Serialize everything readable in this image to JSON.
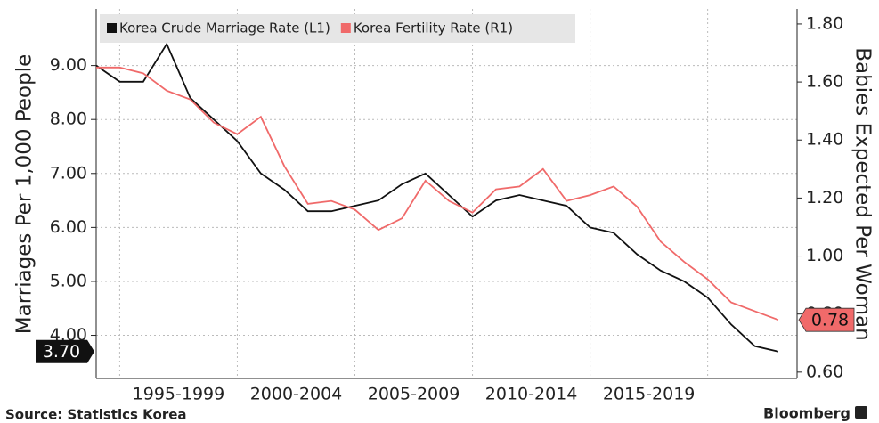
{
  "chart_data": {
    "type": "line",
    "x": [
      1993,
      1994,
      1995,
      1996,
      1997,
      1998,
      1999,
      2000,
      2001,
      2002,
      2003,
      2004,
      2005,
      2006,
      2007,
      2008,
      2009,
      2010,
      2011,
      2012,
      2013,
      2014,
      2015,
      2016,
      2017,
      2018,
      2019,
      2020,
      2021,
      2022
    ],
    "series": [
      {
        "name": "Korea Crude Marriage Rate (L1)",
        "color": "#111111",
        "axis": "y",
        "values": [
          9.0,
          8.7,
          8.7,
          9.4,
          8.4,
          8.0,
          7.6,
          7.0,
          6.7,
          6.3,
          6.3,
          6.4,
          6.5,
          6.8,
          7.0,
          6.6,
          6.2,
          6.5,
          6.6,
          6.5,
          6.4,
          6.0,
          5.9,
          5.5,
          5.2,
          5.0,
          4.7,
          4.2,
          3.8,
          3.7
        ],
        "last_label": "3.70"
      },
      {
        "name": "Korea Fertility Rate (R1)",
        "color": "#f06a6a",
        "axis": "y2",
        "values": [
          1.65,
          1.65,
          1.63,
          1.57,
          1.54,
          1.46,
          1.42,
          1.48,
          1.31,
          1.18,
          1.19,
          1.16,
          1.09,
          1.13,
          1.26,
          1.19,
          1.15,
          1.23,
          1.24,
          1.3,
          1.19,
          1.21,
          1.24,
          1.17,
          1.05,
          0.98,
          0.92,
          0.84,
          0.81,
          0.78
        ],
        "last_label": "0.78"
      }
    ],
    "xlim": [
      1993,
      2022.8
    ],
    "xticks": [
      {
        "value": 1996.5,
        "label": "1995-1999"
      },
      {
        "value": 2001.5,
        "label": "2000-2004"
      },
      {
        "value": 2006.5,
        "label": "2005-2009"
      },
      {
        "value": 2011.5,
        "label": "2010-2014"
      },
      {
        "value": 2016.5,
        "label": "2015-2019"
      }
    ],
    "xgrid": [
      1994,
      1999,
      2004,
      2009,
      2014,
      2019
    ],
    "ylim": [
      3.2,
      10.05
    ],
    "yticks": [
      {
        "value": 4,
        "label": "4.00"
      },
      {
        "value": 5,
        "label": "5.00"
      },
      {
        "value": 6,
        "label": "6.00"
      },
      {
        "value": 7,
        "label": "7.00"
      },
      {
        "value": 8,
        "label": "8.00"
      },
      {
        "value": 9,
        "label": "9.00"
      }
    ],
    "y2lim": [
      0.578,
      1.852
    ],
    "y2ticks": [
      {
        "value": 0.6,
        "label": "0.60"
      },
      {
        "value": 0.8,
        "label": "0.80"
      },
      {
        "value": 1.0,
        "label": "1.00"
      },
      {
        "value": 1.2,
        "label": "1.20"
      },
      {
        "value": 1.4,
        "label": "1.40"
      },
      {
        "value": 1.6,
        "label": "1.60"
      },
      {
        "value": 1.8,
        "label": "1.80"
      }
    ],
    "ylabel": "Marriages Per 1,000 People",
    "y2label": "Babies Expected Per Woman",
    "source": "Source: Statistics Korea",
    "brand": "Bloomberg",
    "grid": true
  }
}
